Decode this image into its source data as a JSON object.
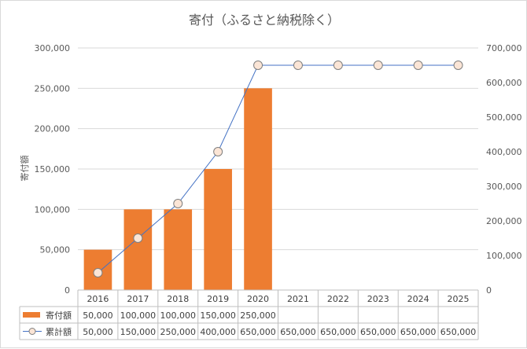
{
  "chart_data": {
    "type": "bar",
    "title": "寄付（ふるさと納税除く）",
    "ylabel": "寄付額",
    "y2label": "",
    "categories": [
      "2016",
      "2017",
      "2018",
      "2019",
      "2020",
      "2021",
      "2022",
      "2023",
      "2024",
      "2025"
    ],
    "ylim": [
      0,
      300000
    ],
    "y2lim": [
      0,
      700000
    ],
    "yticks": [
      "0",
      "50,000",
      "100,000",
      "150,000",
      "200,000",
      "250,000",
      "300,000"
    ],
    "y2ticks": [
      "0",
      "100,000",
      "200,000",
      "300,000",
      "400,000",
      "500,000",
      "600,000",
      "700,000"
    ],
    "grid": true,
    "legend": "data-table",
    "series": [
      {
        "name": "寄付額",
        "type": "bar",
        "axis": "left",
        "color": "#ed7d31",
        "values": [
          50000,
          100000,
          100000,
          150000,
          250000,
          null,
          null,
          null,
          null,
          null
        ],
        "labels": [
          "50,000",
          "100,000",
          "100,000",
          "150,000",
          "250,000",
          "",
          "",
          "",
          "",
          ""
        ]
      },
      {
        "name": "累計額",
        "type": "line",
        "axis": "right",
        "color": "#4472c4",
        "marker_fill": "#fbe5d6",
        "values": [
          50000,
          150000,
          250000,
          400000,
          650000,
          650000,
          650000,
          650000,
          650000,
          650000
        ],
        "labels": [
          "50,000",
          "150,000",
          "250,000",
          "400,000",
          "650,000",
          "650,000",
          "650,000",
          "650,000",
          "650,000",
          "650,000"
        ]
      }
    ]
  }
}
